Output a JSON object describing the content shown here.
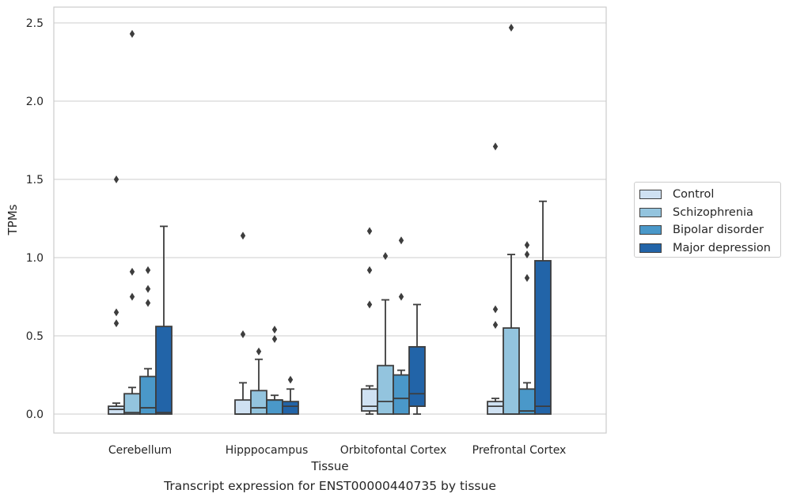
{
  "chart_data": {
    "type": "box",
    "xlabel": "Tissue",
    "ylabel": "TPMs",
    "caption": "Transcript expression for ENST00000440735 by tissue",
    "ylim": [
      -0.12,
      2.6
    ],
    "yticks": [
      "0.0",
      "0.5",
      "1.0",
      "1.5",
      "2.0",
      "2.5"
    ],
    "ytick_values": [
      0,
      0.5,
      1.0,
      1.5,
      2.0,
      2.5
    ],
    "grid": "horizontal",
    "legend_position": "right",
    "categories": [
      "Cerebellum",
      "Hipppocampus",
      "Orbitofontal Cortex",
      "Prefrontal Cortex"
    ],
    "series": [
      {
        "name": "Control",
        "color": "#cfe1f2",
        "boxes": [
          {
            "whislo": 0,
            "q1": 0,
            "median": 0.03,
            "q3": 0.05,
            "whishi": 0.07,
            "fliers": [
              1.5,
              0.65,
              0.58
            ]
          },
          {
            "whislo": 0,
            "q1": 0,
            "median": 0,
            "q3": 0.09,
            "whishi": 0.2,
            "fliers": [
              1.14,
              0.51
            ]
          },
          {
            "whislo": 0,
            "q1": 0.02,
            "median": 0.05,
            "q3": 0.16,
            "whishi": 0.18,
            "fliers": [
              1.17,
              0.92,
              0.7
            ]
          },
          {
            "whislo": 0,
            "q1": 0,
            "median": 0.05,
            "q3": 0.08,
            "whishi": 0.1,
            "fliers": [
              1.71,
              0.67,
              0.57
            ]
          }
        ]
      },
      {
        "name": "Schizophrenia",
        "color": "#93c4de",
        "boxes": [
          {
            "whislo": 0,
            "q1": 0,
            "median": 0.01,
            "q3": 0.13,
            "whishi": 0.17,
            "fliers": [
              2.43,
              0.91,
              0.75
            ]
          },
          {
            "whislo": 0,
            "q1": 0,
            "median": 0.04,
            "q3": 0.15,
            "whishi": 0.35,
            "fliers": [
              0.4
            ]
          },
          {
            "whislo": 0,
            "q1": 0,
            "median": 0.08,
            "q3": 0.31,
            "whishi": 0.73,
            "fliers": [
              1.01
            ]
          },
          {
            "whislo": 0,
            "q1": 0,
            "median": 0,
            "q3": 0.55,
            "whishi": 1.02,
            "fliers": [
              2.47
            ]
          }
        ]
      },
      {
        "name": "Bipolar disorder",
        "color": "#4a98c9",
        "boxes": [
          {
            "whislo": 0,
            "q1": 0,
            "median": 0.04,
            "q3": 0.24,
            "whishi": 0.29,
            "fliers": [
              0.92,
              0.8,
              0.71
            ]
          },
          {
            "whislo": 0,
            "q1": 0,
            "median": 0.09,
            "q3": 0.09,
            "whishi": 0.12,
            "fliers": [
              0.54,
              0.48
            ]
          },
          {
            "whislo": 0,
            "q1": 0,
            "median": 0.1,
            "q3": 0.25,
            "whishi": 0.28,
            "fliers": [
              1.11,
              0.75
            ]
          },
          {
            "whislo": 0,
            "q1": 0,
            "median": 0.02,
            "q3": 0.16,
            "whishi": 0.2,
            "fliers": [
              1.08,
              1.02,
              0.87
            ]
          }
        ]
      },
      {
        "name": "Major depression",
        "color": "#2264a8",
        "boxes": [
          {
            "whislo": 0,
            "q1": 0,
            "median": 0.01,
            "q3": 0.56,
            "whishi": 1.2,
            "fliers": []
          },
          {
            "whislo": 0,
            "q1": 0,
            "median": 0.05,
            "q3": 0.08,
            "whishi": 0.16,
            "fliers": [
              0.22
            ]
          },
          {
            "whislo": 0,
            "q1": 0.05,
            "median": 0.13,
            "q3": 0.43,
            "whishi": 0.7,
            "fliers": []
          },
          {
            "whislo": 0,
            "q1": 0,
            "median": 0.05,
            "q3": 0.98,
            "whishi": 1.36,
            "fliers": []
          }
        ]
      }
    ]
  }
}
